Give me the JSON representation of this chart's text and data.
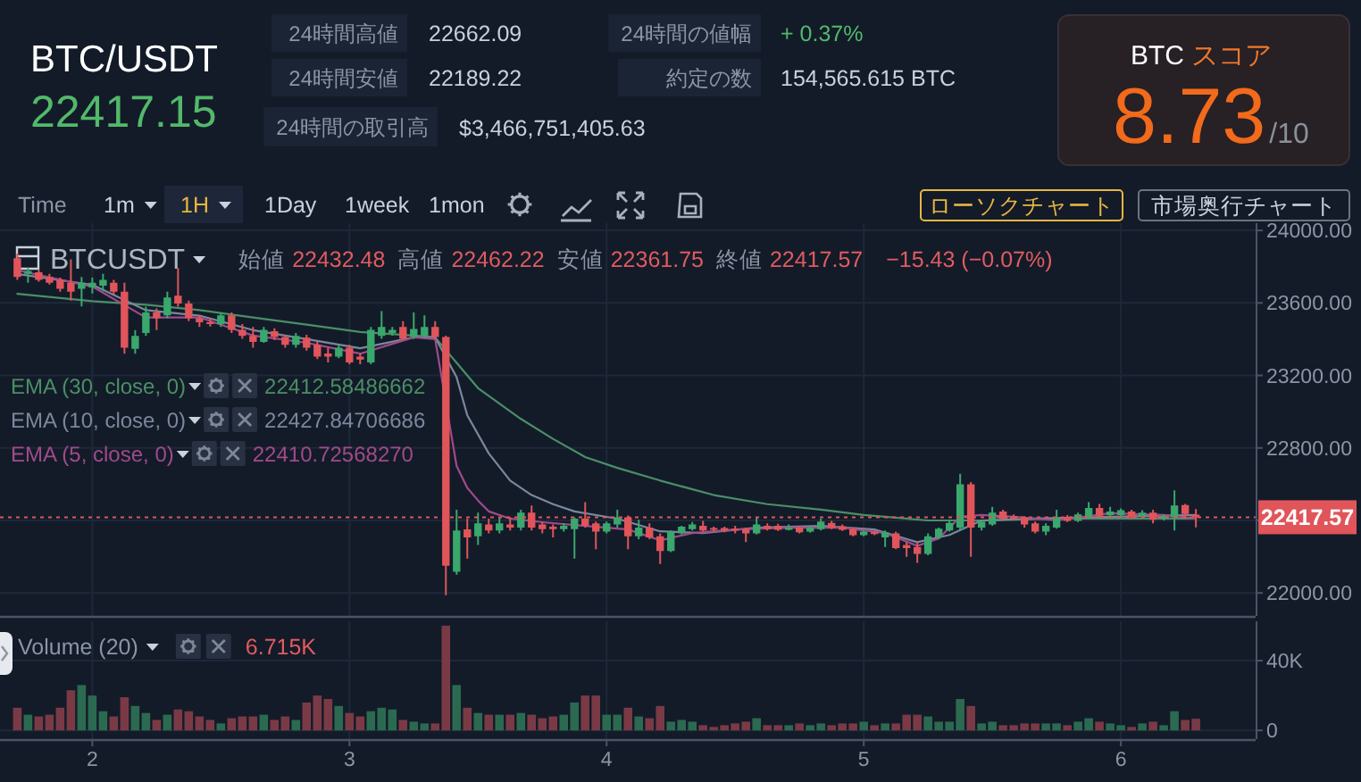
{
  "chart_data": [
    {
      "type": "other",
      "title": "BTC/USDT",
      "annotations": [
        "22417.15",
        "24時間高値",
        "22662.09",
        "24時間安値",
        "22189.22",
        "24時間の取引高",
        "$3,466,751,405.63",
        "24時間の値幅",
        "+ 0.37%",
        "約定の数",
        "154,565.615 BTC",
        "BTC",
        "スコア",
        "8.73",
        "/10",
        "Time",
        "1m",
        "1H",
        "1Day",
        "1week",
        "1mon",
        "ローソクチャート",
        "市場奥行チャート"
      ]
    },
    {
      "type": "candlestick",
      "title": "BTCUSDT",
      "annotations": [
        "始値",
        "22432.48",
        "高値",
        "22462.22",
        "安値",
        "22361.75",
        "終値",
        "22417.57",
        "−15.43 (−0.07%)",
        "22412.58486662",
        "22427.84706686",
        "22410.72568270"
      ],
      "x": [
        1.7083,
        1.75,
        1.7917,
        1.8333,
        1.875,
        1.9167,
        1.9583,
        2,
        2.0417,
        2.0833,
        2.125,
        2.1667,
        2.2083,
        2.25,
        2.2917,
        2.3333,
        2.375,
        2.4167,
        2.4583,
        2.5,
        2.5417,
        2.5833,
        2.625,
        2.6667,
        2.7083,
        2.75,
        2.7917,
        2.8333,
        2.875,
        2.9167,
        2.9583,
        3,
        3.0417,
        3.0833,
        3.125,
        3.1667,
        3.2083,
        3.25,
        3.2917,
        3.3333,
        3.375,
        3.4167,
        3.4583,
        3.5,
        3.5417,
        3.5833,
        3.625,
        3.6667,
        3.7083,
        3.75,
        3.7917,
        3.8333,
        3.875,
        3.9167,
        3.9583,
        4,
        4.0417,
        4.0833,
        4.125,
        4.1667,
        4.2083,
        4.25,
        4.2917,
        4.3333,
        4.375,
        4.4167,
        4.4583,
        4.5,
        4.5417,
        4.5833,
        4.625,
        4.6667,
        4.7083,
        4.75,
        4.7917,
        4.8333,
        4.875,
        4.9167,
        4.9583,
        5,
        5.0417,
        5.0833,
        5.125,
        5.1667,
        5.2083,
        5.25,
        5.2917,
        5.3333,
        5.375,
        5.4167,
        5.4583,
        5.5,
        5.5417,
        5.5833,
        5.625,
        5.6667,
        5.7083,
        5.75,
        5.7917,
        5.8333,
        5.875,
        5.9167,
        5.9583,
        6,
        6.0417,
        6.0833,
        6.125,
        6.1667,
        6.2083,
        6.25,
        6.2917
      ],
      "ohlc": [
        [
          23847,
          23873,
          23727,
          23743
        ],
        [
          23760,
          23792,
          23711,
          23776
        ],
        [
          23769,
          23785,
          23717,
          23727
        ],
        [
          23743,
          23760,
          23701,
          23711
        ],
        [
          23727,
          23740,
          23662,
          23678
        ],
        [
          23711,
          23841,
          23613,
          23662
        ],
        [
          23678,
          23743,
          23581,
          23711
        ],
        [
          23685,
          23740,
          23652,
          23711
        ],
        [
          23695,
          23760,
          23665,
          23727
        ],
        [
          23711,
          23727,
          23646,
          23662
        ],
        [
          23662,
          23711,
          23320,
          23353
        ],
        [
          23347,
          23450,
          23320,
          23418
        ],
        [
          23434,
          23580,
          23418,
          23548
        ],
        [
          23548,
          23570,
          23450,
          23516
        ],
        [
          23532,
          23662,
          23516,
          23630
        ],
        [
          23640,
          23792,
          23580,
          23597
        ],
        [
          23597,
          23613,
          23500,
          23516
        ],
        [
          23516,
          23532,
          23467,
          23493
        ],
        [
          23493,
          23516,
          23470,
          23483
        ],
        [
          23483,
          23548,
          23467,
          23532
        ],
        [
          23532,
          23548,
          23434,
          23451
        ],
        [
          23451,
          23483,
          23402,
          23418
        ],
        [
          23418,
          23467,
          23353,
          23385
        ],
        [
          23385,
          23467,
          23380,
          23451
        ],
        [
          23444,
          23460,
          23395,
          23412
        ],
        [
          23412,
          23425,
          23353,
          23369
        ],
        [
          23369,
          23434,
          23353,
          23418
        ],
        [
          23408,
          23425,
          23337,
          23353
        ],
        [
          23369,
          23385,
          23290,
          23304
        ],
        [
          23321,
          23353,
          23272,
          23304
        ],
        [
          23304,
          23369,
          23295,
          23353
        ],
        [
          23353,
          23369,
          23262,
          23272
        ],
        [
          23304,
          23321,
          23262,
          23288
        ],
        [
          23272,
          23467,
          23262,
          23451
        ],
        [
          23418,
          23555,
          23402,
          23467
        ],
        [
          23434,
          23467,
          23420,
          23451
        ],
        [
          23467,
          23500,
          23395,
          23402
        ],
        [
          23412,
          23548,
          23402,
          23457
        ],
        [
          23418,
          23532,
          23405,
          23467
        ],
        [
          23467,
          23500,
          23400,
          23412
        ],
        [
          23412,
          23420,
          21987,
          22150
        ],
        [
          22117,
          22459,
          22101,
          22345
        ],
        [
          22351,
          22410,
          22189,
          22306
        ],
        [
          22313,
          22443,
          22264,
          22384
        ],
        [
          22378,
          22410,
          22329,
          22345
        ],
        [
          22345,
          22417,
          22329,
          22384
        ],
        [
          22378,
          22417,
          22345,
          22361
        ],
        [
          22361,
          22459,
          22345,
          22443
        ],
        [
          22443,
          22482,
          22345,
          22361
        ],
        [
          22378,
          22394,
          22329,
          22352
        ],
        [
          22365,
          22378,
          22306,
          22352
        ],
        [
          22352,
          22384,
          22338,
          22371
        ],
        [
          22352,
          22417,
          22189,
          22410
        ],
        [
          22410,
          22501,
          22361,
          22371
        ],
        [
          22384,
          22394,
          22241,
          22338
        ],
        [
          22338,
          22394,
          22329,
          22384
        ],
        [
          22378,
          22459,
          22361,
          22417
        ],
        [
          22417,
          22427,
          22241,
          22312
        ],
        [
          22312,
          22404,
          22296,
          22361
        ],
        [
          22361,
          22384,
          22296,
          22306
        ],
        [
          22312,
          22329,
          22160,
          22231
        ],
        [
          22231,
          22345,
          22225,
          22338
        ],
        [
          22329,
          22371,
          22322,
          22365
        ],
        [
          22352,
          22391,
          22345,
          22378
        ],
        [
          22371,
          22397,
          22338,
          22345
        ],
        [
          22358,
          22365,
          22338,
          22348
        ],
        [
          22358,
          22365,
          22335,
          22345
        ],
        [
          22355,
          22371,
          22329,
          22345
        ],
        [
          22352,
          22361,
          22280,
          22329
        ],
        [
          22329,
          22417,
          22322,
          22378
        ],
        [
          22371,
          22384,
          22345,
          22352
        ],
        [
          22371,
          22381,
          22342,
          22348
        ],
        [
          22348,
          22378,
          22345,
          22361
        ],
        [
          22361,
          22371,
          22329,
          22335
        ],
        [
          22338,
          22368,
          22332,
          22361
        ],
        [
          22352,
          22410,
          22345,
          22394
        ],
        [
          22387,
          22397,
          22352,
          22358
        ],
        [
          22368,
          22378,
          22342,
          22348
        ],
        [
          22352,
          22358,
          22312,
          22319
        ],
        [
          22319,
          22345,
          22312,
          22338
        ],
        [
          22338,
          22345,
          22319,
          22325
        ],
        [
          22306,
          22345,
          22254,
          22335
        ],
        [
          22329,
          22338,
          22241,
          22247
        ],
        [
          22264,
          22280,
          22199,
          22247
        ],
        [
          22254,
          22280,
          22166,
          22215
        ],
        [
          22215,
          22329,
          22208,
          22312
        ],
        [
          22306,
          22361,
          22296,
          22355
        ],
        [
          22345,
          22404,
          22338,
          22387
        ],
        [
          22361,
          22657,
          22345,
          22599
        ],
        [
          22599,
          22612,
          22199,
          22361
        ],
        [
          22361,
          22404,
          22345,
          22394
        ],
        [
          22378,
          22475,
          22371,
          22443
        ],
        [
          22449,
          22459,
          22400,
          22410
        ],
        [
          22423,
          22433,
          22404,
          22410
        ],
        [
          22417,
          22423,
          22361,
          22378
        ],
        [
          22384,
          22394,
          22329,
          22338
        ],
        [
          22338,
          22384,
          22319,
          22371
        ],
        [
          22361,
          22459,
          22355,
          22417
        ],
        [
          22417,
          22430,
          22391,
          22397
        ],
        [
          22397,
          22443,
          22391,
          22433
        ],
        [
          22417,
          22501,
          22410,
          22469
        ],
        [
          22469,
          22491,
          22417,
          22426
        ],
        [
          22430,
          22475,
          22417,
          22449
        ],
        [
          22430,
          22466,
          22423,
          22456
        ],
        [
          22449,
          22459,
          22410,
          22417
        ],
        [
          22423,
          22456,
          22417,
          22443
        ],
        [
          22443,
          22459,
          22384,
          22404
        ],
        [
          22410,
          22433,
          22400,
          22426
        ],
        [
          22417,
          22566,
          22345,
          22482
        ],
        [
          22485,
          22491,
          22410,
          22436
        ],
        [
          22432.48,
          22462.22,
          22361.75,
          22417.57
        ]
      ],
      "colors": [
        "#e0555a",
        "#3aa76d",
        "#e0555a",
        "#e0555a",
        "#e0555a",
        "#e0555a",
        "#3aa76d",
        "#3aa76d",
        "#3aa76d",
        "#e0555a",
        "#e0555a",
        "#3aa76d",
        "#3aa76d",
        "#e0555a",
        "#3aa76d",
        "#e0555a",
        "#e0555a",
        "#e0555a",
        "#e0555a",
        "#3aa76d",
        "#e0555a",
        "#e0555a",
        "#e0555a",
        "#3aa76d",
        "#e0555a",
        "#e0555a",
        "#3aa76d",
        "#e0555a",
        "#e0555a",
        "#e0555a",
        "#3aa76d",
        "#e0555a",
        "#e0555a",
        "#3aa76d",
        "#3aa76d",
        "#3aa76d",
        "#e0555a",
        "#3aa76d",
        "#3aa76d",
        "#e0555a",
        "#e0555a",
        "#3aa76d",
        "#e0555a",
        "#3aa76d",
        "#e0555a",
        "#3aa76d",
        "#e0555a",
        "#3aa76d",
        "#e0555a",
        "#e0555a",
        "#e0555a",
        "#3aa76d",
        "#3aa76d",
        "#e0555a",
        "#e0555a",
        "#3aa76d",
        "#3aa76d",
        "#e0555a",
        "#3aa76d",
        "#e0555a",
        "#e0555a",
        "#3aa76d",
        "#3aa76d",
        "#3aa76d",
        "#e0555a",
        "#e0555a",
        "#e0555a",
        "#e0555a",
        "#e0555a",
        "#3aa76d",
        "#e0555a",
        "#e0555a",
        "#3aa76d",
        "#e0555a",
        "#3aa76d",
        "#3aa76d",
        "#e0555a",
        "#e0555a",
        "#e0555a",
        "#3aa76d",
        "#e0555a",
        "#3aa76d",
        "#e0555a",
        "#e0555a",
        "#e0555a",
        "#3aa76d",
        "#3aa76d",
        "#3aa76d",
        "#3aa76d",
        "#e0555a",
        "#3aa76d",
        "#3aa76d",
        "#e0555a",
        "#e0555a",
        "#e0555a",
        "#e0555a",
        "#3aa76d",
        "#3aa76d",
        "#e0555a",
        "#3aa76d",
        "#3aa76d",
        "#e0555a",
        "#3aa76d",
        "#3aa76d",
        "#e0555a",
        "#3aa76d",
        "#e0555a",
        "#3aa76d",
        "#3aa76d",
        "#e0555a",
        "#e0555a"
      ],
      "series": [
        {
          "name": "EMA (30, close, 0)",
          "type": "line",
          "color": "#4a8f66",
          "x": [
            1.7083,
            2,
            2.2083,
            2.4167,
            2.625,
            2.8333,
            3.0417,
            3.25,
            3.3333,
            3.5,
            3.6667,
            3.7917,
            3.9167,
            4.0417,
            4.2083,
            4.4167,
            4.625,
            4.8333,
            5,
            5.25,
            5.5,
            5.75,
            6,
            6.2917
          ],
          "values": [
            23650,
            23610,
            23590,
            23560,
            23520,
            23480,
            23440,
            23420,
            23410,
            23130,
            22960,
            22850,
            22750,
            22690,
            22620,
            22540,
            22490,
            22460,
            22430,
            22400,
            22400,
            22410,
            22410,
            22410
          ]
        },
        {
          "name": "EMA (10, close, 0)",
          "type": "line",
          "color": "#7a889c",
          "x": [
            1.7083,
            2,
            2.2083,
            2.4167,
            2.625,
            2.8333,
            3.0417,
            3.25,
            3.3333,
            3.4167,
            3.4583,
            3.5417,
            3.625,
            3.7083,
            3.7917,
            3.875,
            4.0417,
            4.2083,
            4.375,
            4.5833,
            4.8333,
            5.0417,
            5.2083,
            5.3333,
            5.4583,
            5.6667,
            5.9583,
            6.2917
          ],
          "values": [
            23760,
            23700,
            23560,
            23530,
            23450,
            23400,
            23350,
            23410,
            23410,
            23190,
            22980,
            22770,
            22620,
            22540,
            22490,
            22450,
            22410,
            22340,
            22330,
            22360,
            22370,
            22350,
            22280,
            22320,
            22400,
            22410,
            22420,
            22430
          ]
        },
        {
          "name": "EMA (5, close, 0)",
          "type": "line",
          "color": "#a04a8a",
          "x": [
            1.7083,
            2,
            2.2083,
            2.4167,
            2.625,
            2.8333,
            3.0417,
            3.25,
            3.3333,
            3.4167,
            3.4583,
            3.5,
            3.5417,
            3.625,
            3.75,
            3.9167,
            4.0833,
            4.2083,
            4.3333,
            4.5,
            4.7083,
            4.9167,
            5.0833,
            5.2083,
            5.2917,
            5.375,
            5.4583,
            5.5833,
            5.75,
            5.9583,
            6.1667,
            6.2917
          ],
          "values": [
            23780,
            23690,
            23520,
            23520,
            23420,
            23380,
            23320,
            23410,
            23400,
            22700,
            22580,
            22510,
            22450,
            22410,
            22390,
            22370,
            22350,
            22290,
            22330,
            22350,
            22360,
            22360,
            22330,
            22260,
            22300,
            22420,
            22430,
            22420,
            22400,
            22440,
            22430,
            22410
          ]
        }
      ],
      "xlim": [
        1.641,
        6.524
      ],
      "xticks": [
        2,
        3,
        4,
        5,
        6
      ],
      "ylim": [
        21873,
        24040
      ],
      "yticks": [
        {
          "value": 22000,
          "label": "22000.00"
        },
        {
          "value": 22400,
          "label": null
        },
        {
          "value": 22800,
          "label": "22800.00"
        },
        {
          "value": 23200,
          "label": "23200.00"
        },
        {
          "value": 23600,
          "label": "23600.00"
        },
        {
          "value": 24000,
          "label": "24000.00"
        }
      ],
      "ref_lines": [
        {
          "axis": "y",
          "value": 22417.57,
          "label": "22417.57",
          "color": "#e0555a",
          "line_style": "dashed"
        }
      ],
      "grid": true,
      "legend": "left",
      "tick_labels": "y"
    },
    {
      "type": "bar",
      "title": "Volume (20)",
      "annotations": [
        "6.715K"
      ],
      "x": [
        1.7083,
        1.75,
        1.7917,
        1.8333,
        1.875,
        1.9167,
        1.9583,
        2,
        2.0417,
        2.0833,
        2.125,
        2.1667,
        2.2083,
        2.25,
        2.2917,
        2.3333,
        2.375,
        2.4167,
        2.4583,
        2.5,
        2.5417,
        2.5833,
        2.625,
        2.6667,
        2.7083,
        2.75,
        2.7917,
        2.8333,
        2.875,
        2.9167,
        2.9583,
        3,
        3.0417,
        3.0833,
        3.125,
        3.1667,
        3.2083,
        3.25,
        3.2917,
        3.3333,
        3.375,
        3.4167,
        3.4583,
        3.5,
        3.5417,
        3.5833,
        3.625,
        3.6667,
        3.7083,
        3.75,
        3.7917,
        3.8333,
        3.875,
        3.9167,
        3.9583,
        4,
        4.0417,
        4.0833,
        4.125,
        4.1667,
        4.2083,
        4.25,
        4.2917,
        4.3333,
        4.375,
        4.4167,
        4.4583,
        4.5,
        4.5417,
        4.5833,
        4.625,
        4.6667,
        4.7083,
        4.75,
        4.7917,
        4.8333,
        4.875,
        4.9167,
        4.9583,
        5,
        5.0417,
        5.0833,
        5.125,
        5.1667,
        5.2083,
        5.25,
        5.2917,
        5.3333,
        5.375,
        5.4167,
        5.4583,
        5.5,
        5.5417,
        5.5833,
        5.625,
        5.6667,
        5.7083,
        5.75,
        5.7917,
        5.8333,
        5.875,
        5.9167,
        5.9583,
        6,
        6.0417,
        6.0833,
        6.125,
        6.1667,
        6.2083,
        6.25,
        6.2917
      ],
      "values": [
        13000,
        9000,
        8000,
        9000,
        13000,
        23000,
        26000,
        20000,
        11000,
        8000,
        19000,
        14000,
        10000,
        6000,
        9000,
        12000,
        11000,
        8000,
        6000,
        4000,
        7000,
        8000,
        8000,
        9000,
        6000,
        8000,
        6000,
        16000,
        20000,
        18000,
        14000,
        10000,
        8000,
        11000,
        13000,
        12000,
        6000,
        5000,
        4000,
        4000,
        60000,
        26000,
        13000,
        10000,
        9000,
        9000,
        9000,
        10000,
        9000,
        7000,
        8000,
        9000,
        16000,
        20000,
        20000,
        9000,
        9000,
        13000,
        8000,
        7000,
        14000,
        5000,
        6000,
        5000,
        3000,
        2000,
        3000,
        4000,
        5000,
        7000,
        3000,
        3000,
        3000,
        4000,
        3000,
        4000,
        3000,
        4000,
        4000,
        5000,
        3000,
        4000,
        4000,
        9000,
        9000,
        8000,
        5000,
        5000,
        18000,
        14000,
        4000,
        5000,
        3000,
        3000,
        4000,
        4000,
        4000,
        4000,
        3000,
        5000,
        7000,
        5000,
        4000,
        3000,
        2000,
        4000,
        5000,
        3000,
        11000,
        6000,
        6715
      ],
      "colors": [
        "#7a3a45",
        "#2b6a50",
        "#7a3a45",
        "#7a3a45",
        "#7a3a45",
        "#7a3a45",
        "#2b6a50",
        "#2b6a50",
        "#2b6a50",
        "#7a3a45",
        "#7a3a45",
        "#2b6a50",
        "#2b6a50",
        "#7a3a45",
        "#2b6a50",
        "#7a3a45",
        "#7a3a45",
        "#7a3a45",
        "#7a3a45",
        "#2b6a50",
        "#7a3a45",
        "#7a3a45",
        "#7a3a45",
        "#2b6a50",
        "#7a3a45",
        "#7a3a45",
        "#2b6a50",
        "#7a3a45",
        "#7a3a45",
        "#7a3a45",
        "#2b6a50",
        "#7a3a45",
        "#7a3a45",
        "#2b6a50",
        "#2b6a50",
        "#2b6a50",
        "#7a3a45",
        "#2b6a50",
        "#2b6a50",
        "#7a3a45",
        "#7a3a45",
        "#2b6a50",
        "#7a3a45",
        "#2b6a50",
        "#7a3a45",
        "#2b6a50",
        "#7a3a45",
        "#2b6a50",
        "#7a3a45",
        "#7a3a45",
        "#7a3a45",
        "#2b6a50",
        "#2b6a50",
        "#7a3a45",
        "#7a3a45",
        "#2b6a50",
        "#2b6a50",
        "#7a3a45",
        "#2b6a50",
        "#7a3a45",
        "#7a3a45",
        "#2b6a50",
        "#2b6a50",
        "#2b6a50",
        "#7a3a45",
        "#7a3a45",
        "#7a3a45",
        "#7a3a45",
        "#7a3a45",
        "#2b6a50",
        "#7a3a45",
        "#7a3a45",
        "#2b6a50",
        "#7a3a45",
        "#2b6a50",
        "#2b6a50",
        "#7a3a45",
        "#7a3a45",
        "#7a3a45",
        "#2b6a50",
        "#7a3a45",
        "#2b6a50",
        "#7a3a45",
        "#7a3a45",
        "#7a3a45",
        "#2b6a50",
        "#2b6a50",
        "#2b6a50",
        "#2b6a50",
        "#7a3a45",
        "#2b6a50",
        "#2b6a50",
        "#7a3a45",
        "#7a3a45",
        "#7a3a45",
        "#7a3a45",
        "#2b6a50",
        "#2b6a50",
        "#7a3a45",
        "#2b6a50",
        "#2b6a50",
        "#7a3a45",
        "#2b6a50",
        "#2b6a50",
        "#7a3a45",
        "#2b6a50",
        "#7a3a45",
        "#2b6a50",
        "#2b6a50",
        "#7a3a45",
        "#7a3a45"
      ],
      "xlim": [
        1.641,
        6.524
      ],
      "xticks": [
        2,
        3,
        4,
        5,
        6
      ],
      "ylim": [
        -5000,
        62500
      ],
      "yticks": [
        0,
        {
          "value": 40000,
          "label": "40K"
        }
      ],
      "grid": true
    }
  ]
}
